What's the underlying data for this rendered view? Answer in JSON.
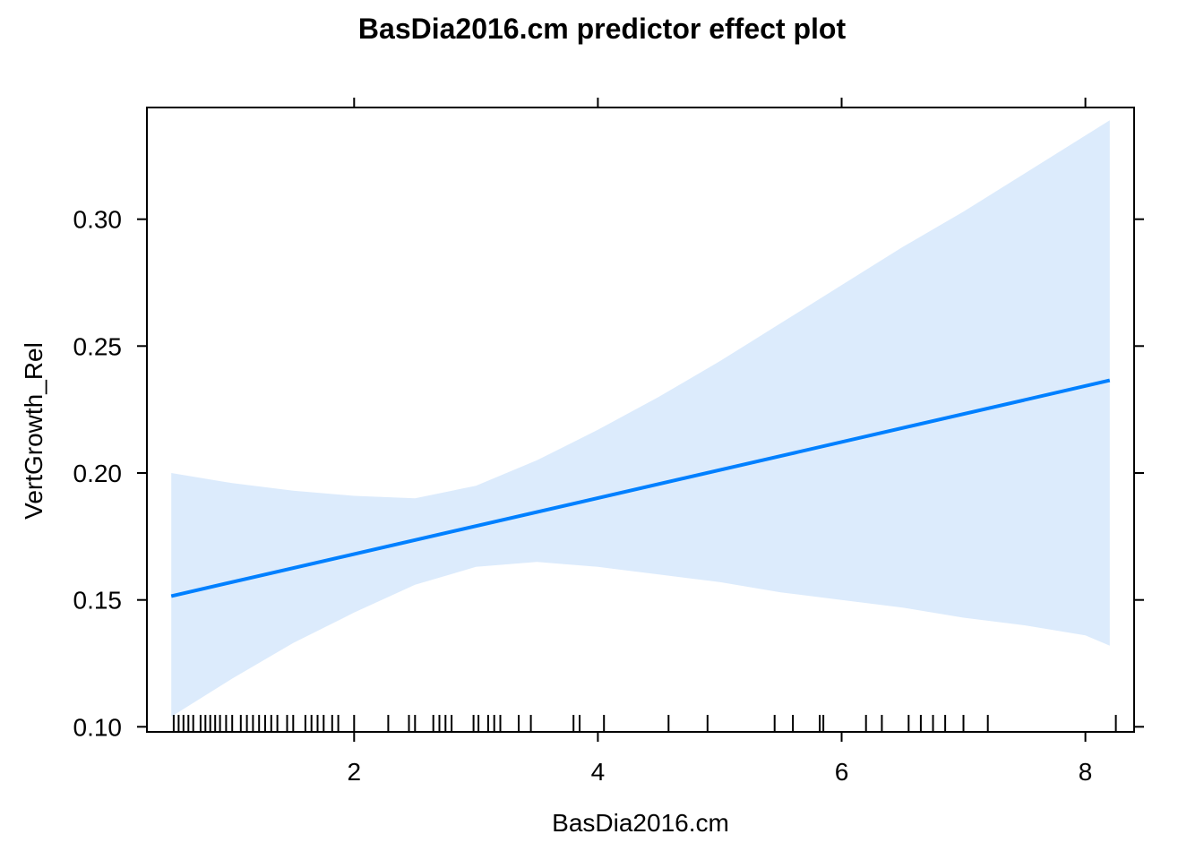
{
  "chart_data": {
    "type": "line",
    "title": "BasDia2016.cm predictor effect plot",
    "xlabel": "BasDia2016.cm",
    "ylabel": "VertGrowth_Rel",
    "xlim": [
      0.3,
      8.4
    ],
    "ylim": [
      0.098,
      0.344
    ],
    "x_ticks": [
      2,
      4,
      6,
      8
    ],
    "y_ticks": [
      0.1,
      0.15,
      0.2,
      0.25,
      0.3
    ],
    "x_tick_labels": [
      "2",
      "4",
      "6",
      "8"
    ],
    "y_tick_labels": [
      "0.10",
      "0.15",
      "0.20",
      "0.25",
      "0.30"
    ],
    "grid": false,
    "legend": "none",
    "colors": {
      "line": "#0080FF",
      "band": "#DCEBFC",
      "axis": "#000000"
    },
    "series": [
      {
        "x": [
          0.5,
          8.2
        ],
        "y": [
          0.1515,
          0.2365
        ]
      }
    ],
    "confidence_band": {
      "x": [
        0.5,
        1.0,
        1.5,
        2.0,
        2.5,
        3.0,
        3.5,
        4.0,
        4.5,
        5.0,
        5.5,
        6.0,
        6.5,
        7.0,
        7.5,
        8.0,
        8.2
      ],
      "upper": [
        0.2,
        0.196,
        0.193,
        0.191,
        0.19,
        0.195,
        0.205,
        0.217,
        0.23,
        0.244,
        0.259,
        0.274,
        0.289,
        0.303,
        0.318,
        0.333,
        0.339
      ],
      "lower": [
        0.104,
        0.119,
        0.133,
        0.145,
        0.156,
        0.163,
        0.165,
        0.163,
        0.16,
        0.157,
        0.153,
        0.15,
        0.147,
        0.143,
        0.14,
        0.136,
        0.132
      ]
    },
    "rug": [
      0.52,
      0.56,
      0.6,
      0.64,
      0.68,
      0.74,
      0.78,
      0.82,
      0.86,
      0.9,
      0.95,
      1.0,
      1.07,
      1.12,
      1.17,
      1.22,
      1.27,
      1.32,
      1.37,
      1.45,
      1.5,
      1.6,
      1.65,
      1.7,
      1.75,
      1.82,
      1.87,
      2.0,
      2.28,
      2.45,
      2.5,
      2.65,
      2.7,
      2.75,
      2.8,
      2.98,
      3.02,
      3.1,
      3.15,
      3.2,
      3.35,
      3.45,
      3.8,
      3.85,
      4.05,
      4.58,
      4.9,
      5.45,
      5.6,
      5.82,
      5.85,
      6.2,
      6.33,
      6.55,
      6.65,
      6.75,
      6.85,
      7.0,
      7.2,
      8.25
    ]
  }
}
